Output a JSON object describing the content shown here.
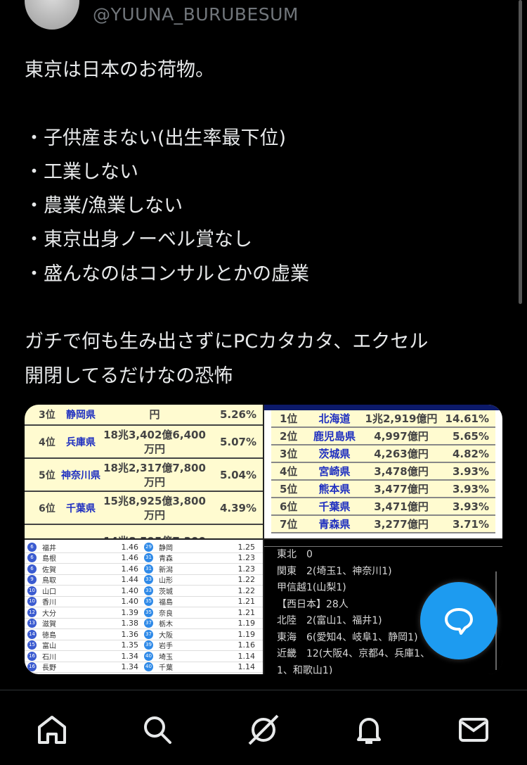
{
  "author": {
    "handle": "@YUUNA_BURUBESUM"
  },
  "tweet": {
    "lines": [
      "東京は日本のお荷物。",
      "",
      "・子供産まない(出生率最下位)",
      "・工業しない",
      "・農業/漁業しない",
      "・東京出身ノーベル賞なし",
      "・盛んなのはコンサルとかの虚業",
      "",
      "ガチで何も生み出さずにPCカタカタ、エクセル",
      "開閉してるだけなの恐怖"
    ]
  },
  "media": {
    "image1": {
      "rows": [
        {
          "rank": "3位",
          "pref": "静岡県",
          "amount": "円",
          "pct": "5.26%"
        },
        {
          "rank": "4位",
          "pref": "兵庫県",
          "amount": "18兆3,402億6,400万円",
          "pct": "5.07%"
        },
        {
          "rank": "5位",
          "pref": "神奈川県",
          "amount": "18兆2,317億7,800万円",
          "pct": "5.04%"
        },
        {
          "rank": "6位",
          "pref": "千葉県",
          "amount": "15兆8,925億3,800万円",
          "pct": "4.39%"
        },
        {
          "rank": "",
          "pref": "",
          "amount": "14兆8,595億7,300",
          "pct": ""
        }
      ]
    },
    "image2": {
      "rows": [
        {
          "rank": "1位",
          "pref": "北海道",
          "amount": "1兆2,919億円",
          "pct": "14.61%"
        },
        {
          "rank": "2位",
          "pref": "鹿児島県",
          "amount": "4,997億円",
          "pct": "5.65%"
        },
        {
          "rank": "3位",
          "pref": "茨城県",
          "amount": "4,263億円",
          "pct": "4.82%"
        },
        {
          "rank": "4位",
          "pref": "宮崎県",
          "amount": "3,478億円",
          "pct": "3.93%"
        },
        {
          "rank": "5位",
          "pref": "熊本県",
          "amount": "3,477億円",
          "pct": "3.93%"
        },
        {
          "rank": "6位",
          "pref": "千葉県",
          "amount": "3,471億円",
          "pct": "3.93%"
        },
        {
          "rank": "7位",
          "pref": "青森県",
          "amount": "3,277億円",
          "pct": "3.71%"
        }
      ]
    },
    "image3": {
      "rows": [
        [
          [
            "6",
            "福井",
            "1.46"
          ],
          [
            "29",
            "静岡",
            "1.25"
          ]
        ],
        [
          [
            "6",
            "島根",
            "1.46"
          ],
          [
            "31",
            "青森",
            "1.23"
          ]
        ],
        [
          [
            "6",
            "佐賀",
            "1.46"
          ],
          [
            "31",
            "新潟",
            "1.23"
          ]
        ],
        [
          [
            "9",
            "鳥取",
            "1.44"
          ],
          [
            "33",
            "山形",
            "1.22"
          ]
        ],
        [
          [
            "10",
            "山口",
            "1.40"
          ],
          [
            "33",
            "茨城",
            "1.22"
          ]
        ],
        [
          [
            "10",
            "香川",
            "1.40"
          ],
          [
            "35",
            "福島",
            "1.21"
          ]
        ],
        [
          [
            "12",
            "大分",
            "1.39"
          ],
          [
            "35",
            "奈良",
            "1.21"
          ]
        ],
        [
          [
            "13",
            "滋賀",
            "1.38"
          ],
          [
            "37",
            "栃木",
            "1.19"
          ]
        ],
        [
          [
            "14",
            "徳島",
            "1.36"
          ],
          [
            "37",
            "大阪",
            "1.19"
          ]
        ],
        [
          [
            "15",
            "富山",
            "1.35"
          ],
          [
            "39",
            "岩手",
            "1.16"
          ]
        ],
        [
          [
            "16",
            "石川",
            "1.34"
          ],
          [
            "40",
            "埼玉",
            "1.14"
          ]
        ],
        [
          [
            "16",
            "長野",
            "1.34"
          ],
          [
            "40",
            "千葉",
            "1.14"
          ]
        ]
      ]
    },
    "image4": {
      "lines": [
        "東北　0",
        "関東　2(埼玉1、神奈川1)",
        "甲信越1(山梨1)",
        "【西日本】28人",
        "北陸　2(富山1、福井1)",
        "東海　6(愛知4、岐阜1、静岡1)",
        "近畿　12(大阪4、京都4、兵庫1、",
        "1、和歌山1)"
      ]
    }
  },
  "fab": {
    "icon": "reply-bubble-icon",
    "color": "#1d9bf0"
  },
  "nav": {
    "items": [
      {
        "icon": "home-icon"
      },
      {
        "icon": "search-icon"
      },
      {
        "icon": "grok-icon"
      },
      {
        "icon": "notifications-icon"
      },
      {
        "icon": "messages-icon"
      }
    ]
  }
}
